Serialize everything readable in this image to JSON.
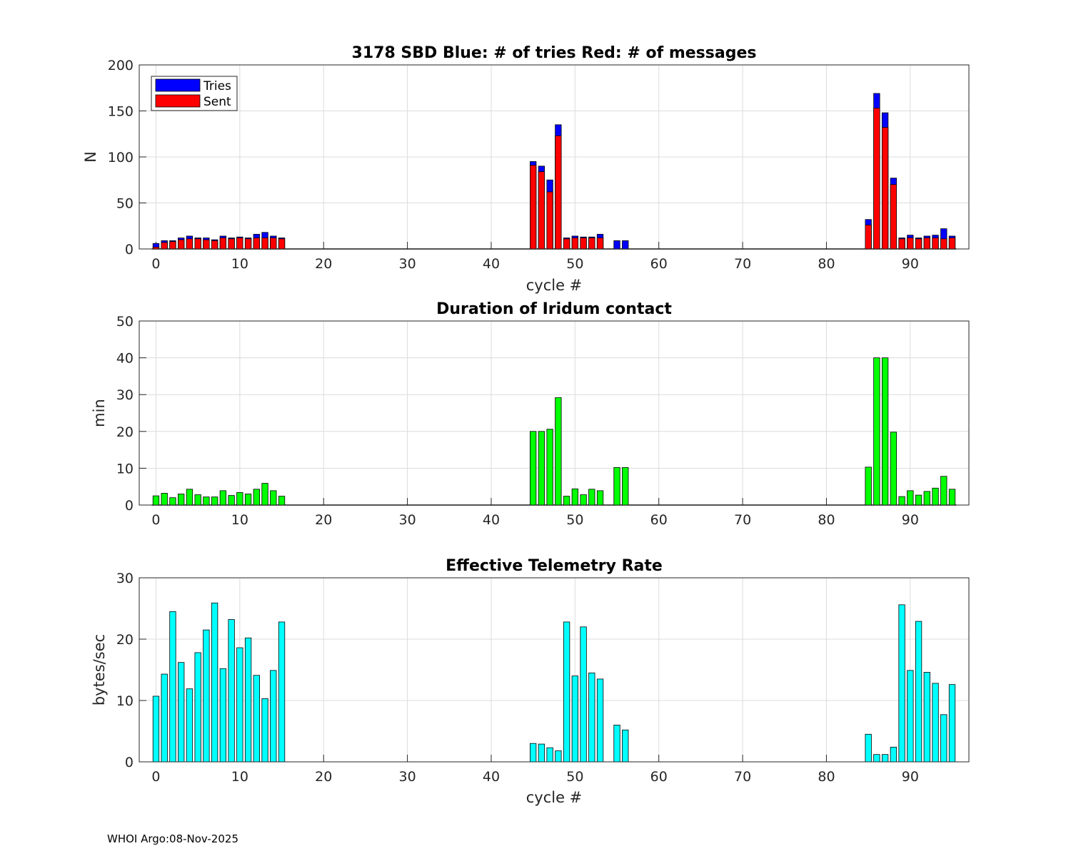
{
  "footer": "WHOI Argo:08-Nov-2025",
  "colors": {
    "tries": "#0000ff",
    "sent": "#ff0000",
    "duration": "#00ff00",
    "rate": "#00ffff",
    "grid": "#dcdcdc"
  },
  "chart_data": [
    {
      "type": "bar",
      "title": "3178 SBD  Blue: # of tries   Red: # of messages",
      "xlabel": "cycle #",
      "ylabel": "N",
      "xlim": [
        -2,
        97
      ],
      "ylim": [
        0,
        200
      ],
      "xticks": [
        0,
        10,
        20,
        30,
        40,
        50,
        60,
        70,
        80,
        90
      ],
      "yticks": [
        0,
        50,
        100,
        150,
        200
      ],
      "legend": {
        "position": "top-left",
        "entries": [
          "Tries",
          "Sent"
        ]
      },
      "x": [
        0,
        1,
        2,
        3,
        4,
        5,
        6,
        7,
        8,
        9,
        10,
        11,
        12,
        13,
        14,
        15,
        45,
        46,
        47,
        48,
        49,
        50,
        51,
        52,
        53,
        55,
        56,
        85,
        86,
        87,
        88,
        89,
        90,
        91,
        92,
        93,
        94,
        95
      ],
      "series": [
        {
          "name": "Tries",
          "values": [
            6,
            9,
            9,
            12,
            14,
            12,
            12,
            10,
            14,
            12,
            13,
            12,
            16,
            18,
            14,
            12,
            95,
            90,
            75,
            135,
            12,
            14,
            13,
            13,
            16,
            9,
            9,
            32,
            169,
            148,
            77,
            12,
            15,
            12,
            14,
            15,
            22,
            14
          ]
        },
        {
          "name": "Sent",
          "values": [
            2,
            7,
            8,
            10,
            11,
            11,
            10,
            9,
            12,
            11,
            12,
            11,
            12,
            12,
            12,
            11,
            91,
            84,
            62,
            123,
            11,
            12,
            12,
            12,
            12,
            0,
            0,
            26,
            153,
            132,
            70,
            11,
            12,
            11,
            12,
            12,
            11,
            12
          ]
        }
      ]
    },
    {
      "type": "bar",
      "title": "Duration of Iridum contact",
      "xlabel": "",
      "ylabel": "min",
      "xlim": [
        -2,
        97
      ],
      "ylim": [
        0,
        50
      ],
      "xticks": [
        0,
        10,
        20,
        30,
        40,
        50,
        60,
        70,
        80,
        90
      ],
      "yticks": [
        0,
        10,
        20,
        30,
        40,
        50
      ],
      "x": [
        0,
        1,
        2,
        3,
        4,
        5,
        6,
        7,
        8,
        9,
        10,
        11,
        12,
        13,
        14,
        15,
        45,
        46,
        47,
        48,
        49,
        50,
        51,
        52,
        53,
        55,
        56,
        85,
        86,
        87,
        88,
        89,
        90,
        91,
        92,
        93,
        94,
        95
      ],
      "values": [
        2.5,
        3.2,
        2.0,
        3.0,
        4.3,
        2.8,
        2.2,
        2.2,
        3.9,
        2.6,
        3.4,
        3.0,
        4.3,
        5.9,
        3.9,
        2.4,
        20,
        20,
        20.6,
        29.2,
        2.4,
        4.4,
        2.8,
        4.3,
        3.9,
        10.2,
        10.2,
        10.3,
        40,
        40,
        19.8,
        2.3,
        3.9,
        2.7,
        3.7,
        4.6,
        7.8,
        4.3
      ]
    },
    {
      "type": "bar",
      "title": "Effective Telemetry Rate",
      "xlabel": "cycle #",
      "ylabel": "bytes/sec",
      "xlim": [
        -2,
        97
      ],
      "ylim": [
        0,
        30
      ],
      "xticks": [
        0,
        10,
        20,
        30,
        40,
        50,
        60,
        70,
        80,
        90
      ],
      "yticks": [
        0,
        10,
        20,
        30
      ],
      "x": [
        0,
        1,
        2,
        3,
        4,
        5,
        6,
        7,
        8,
        9,
        10,
        11,
        12,
        13,
        14,
        15,
        45,
        46,
        47,
        48,
        49,
        50,
        51,
        52,
        53,
        55,
        56,
        85,
        86,
        87,
        88,
        89,
        90,
        91,
        92,
        93,
        94,
        95
      ],
      "values": [
        10.7,
        14.3,
        24.5,
        16.2,
        11.9,
        17.8,
        21.5,
        25.9,
        15.2,
        23.2,
        18.6,
        20.2,
        14.1,
        10.3,
        14.9,
        22.8,
        3.0,
        2.9,
        2.3,
        1.8,
        22.8,
        14.0,
        22.0,
        14.5,
        13.5,
        6.0,
        5.2,
        4.5,
        1.2,
        1.2,
        2.4,
        25.6,
        14.9,
        22.9,
        14.6,
        12.8,
        7.7,
        12.6
      ]
    }
  ]
}
